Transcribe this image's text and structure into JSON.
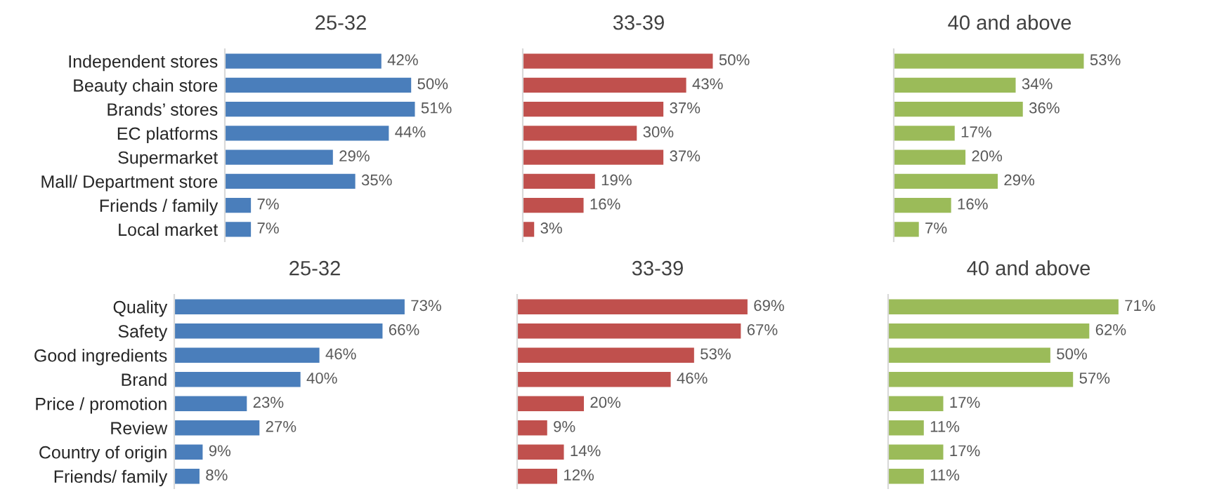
{
  "chart_data": [
    {
      "type": "bar",
      "orientation": "horizontal",
      "title": "25-32",
      "categories": [
        "Independent stores",
        "Beauty chain store",
        "Brands’ stores",
        "EC platforms",
        "Supermarket",
        "Mall/ Department store",
        "Friends / family",
        "Local market"
      ],
      "series": [
        {
          "color": "#4a7ebb",
          "values": [
            42,
            50,
            51,
            44,
            29,
            35,
            7,
            7
          ],
          "value_labels": [
            "42%",
            "50%",
            "51%",
            "44%",
            "29%",
            "35%",
            "7%",
            "7%"
          ]
        }
      ],
      "tick_labels": "y"
    },
    {
      "type": "bar",
      "orientation": "horizontal",
      "title": "33-39",
      "categories": [
        null,
        null,
        null,
        null,
        null,
        null,
        null,
        null
      ],
      "series": [
        {
          "color": "#c0504d",
          "values": [
            50,
            43,
            37,
            30,
            37,
            19,
            16,
            3
          ],
          "value_labels": [
            "50%",
            "43%",
            "37%",
            "30%",
            "37%",
            "19%",
            "16%",
            "3%"
          ]
        }
      ],
      "tick_labels": false
    },
    {
      "type": "bar",
      "orientation": "horizontal",
      "title": "40 and above",
      "categories": [
        null,
        null,
        null,
        null,
        null,
        null,
        null,
        null
      ],
      "series": [
        {
          "color": "#9bbb59",
          "values": [
            53,
            34,
            36,
            17,
            20,
            29,
            16,
            7
          ],
          "value_labels": [
            "53%",
            "34%",
            "36%",
            "17%",
            "20%",
            "29%",
            "16%",
            "7%"
          ]
        }
      ],
      "tick_labels": false
    },
    {
      "type": "bar",
      "orientation": "horizontal",
      "title": "25-32",
      "categories": [
        "Quality",
        "Safety",
        "Good ingredients",
        "Brand",
        "Price / promotion",
        "Review",
        "Country of origin",
        "Friends/ family"
      ],
      "series": [
        {
          "color": "#4a7ebb",
          "values": [
            73,
            66,
            46,
            40,
            23,
            27,
            9,
            8
          ],
          "value_labels": [
            "73%",
            "66%",
            "46%",
            "40%",
            "23%",
            "27%",
            "9%",
            "8%"
          ]
        }
      ],
      "tick_labels": "y"
    },
    {
      "type": "bar",
      "orientation": "horizontal",
      "title": "33-39",
      "categories": [
        null,
        null,
        null,
        null,
        null,
        null,
        null,
        null
      ],
      "series": [
        {
          "color": "#c0504d",
          "values": [
            69,
            67,
            53,
            46,
            20,
            9,
            14,
            12
          ],
          "value_labels": [
            "69%",
            "67%",
            "53%",
            "46%",
            "20%",
            "9%",
            "14%",
            "12%"
          ]
        }
      ],
      "tick_labels": false
    },
    {
      "type": "bar",
      "orientation": "horizontal",
      "title": "40 and above",
      "categories": [
        null,
        null,
        null,
        null,
        null,
        null,
        null,
        null
      ],
      "series": [
        {
          "color": "#9bbb59",
          "values": [
            71,
            62,
            50,
            57,
            17,
            11,
            17,
            11
          ],
          "value_labels": [
            "71%",
            "62%",
            "50%",
            "57%",
            "17%",
            "11%",
            "17%",
            "11%"
          ]
        }
      ],
      "tick_labels": false
    }
  ]
}
